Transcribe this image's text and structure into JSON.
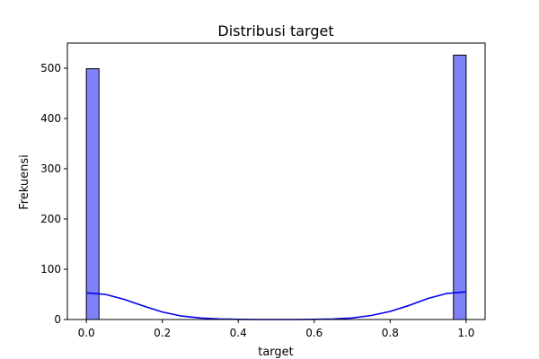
{
  "chart_data": {
    "type": "bar",
    "title": "Distribusi target",
    "xlabel": "target",
    "ylabel": "Frekuensi",
    "xlim": [
      -0.05,
      1.05
    ],
    "ylim": [
      0,
      550
    ],
    "xticks": [
      0.0,
      0.2,
      0.4,
      0.6,
      0.8,
      1.0
    ],
    "xtick_labels": [
      "0.0",
      "0.2",
      "0.4",
      "0.6",
      "0.8",
      "1.0"
    ],
    "yticks": [
      0,
      100,
      200,
      300,
      400,
      500
    ],
    "ytick_labels": [
      "0",
      "100",
      "200",
      "300",
      "400",
      "500"
    ],
    "bins": [
      {
        "x0": 0.0,
        "x1": 0.0333,
        "value": 499
      },
      {
        "x0": 0.9667,
        "x1": 1.0,
        "value": 526
      }
    ],
    "kde": {
      "x": [
        0.0,
        0.05,
        0.1,
        0.15,
        0.2,
        0.25,
        0.3,
        0.35,
        0.4,
        0.45,
        0.5,
        0.55,
        0.6,
        0.65,
        0.7,
        0.75,
        0.8,
        0.85,
        0.9,
        0.95,
        1.0
      ],
      "y": [
        53,
        50,
        40,
        27,
        15,
        7,
        3,
        1,
        0.3,
        0,
        0,
        0,
        0.3,
        1,
        3,
        8,
        16,
        28,
        42,
        52,
        55
      ]
    },
    "grid": false,
    "colors": {
      "bar_fill": "#8080f8",
      "bar_edge": "#000000",
      "kde_line": "#0000ee"
    }
  }
}
